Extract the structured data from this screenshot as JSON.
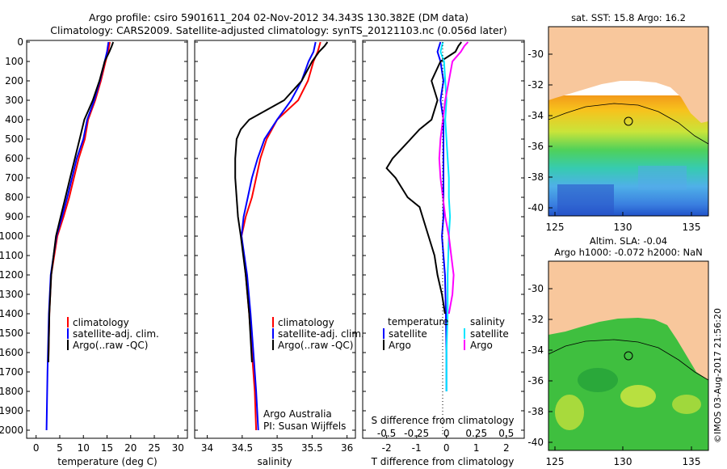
{
  "header": {
    "line1": "Argo profile: csiro 5901611_204 02-Nov-2012 34.343S 130.382E (DM data)",
    "line2": "Climatology: CARS2009. Satellite-adjusted climatology: synTS_20121103.nc (0.056d later)"
  },
  "colors": {
    "climatology": "#ff0000",
    "satellite": "#0000ff",
    "argo": "#000000",
    "sat_s": "#00e5ff",
    "argo_s": "#ff00ff",
    "land": "#f8c79c"
  },
  "depth_ticks": [
    "0",
    "100",
    "200",
    "300",
    "400",
    "500",
    "600",
    "700",
    "800",
    "900",
    "1000",
    "1100",
    "1200",
    "1300",
    "1400",
    "1500",
    "1600",
    "1700",
    "1800",
    "1900",
    "2000"
  ],
  "chart_data": [
    {
      "type": "line",
      "xlabel": "temperature (deg C)",
      "xticks": [
        "0",
        "5",
        "10",
        "15",
        "20",
        "25",
        "30"
      ],
      "xlim": [
        -2,
        32
      ],
      "ylim": [
        2080,
        0
      ],
      "legend": [
        "climatology",
        "satellite-adj. clim.",
        "Argo(..raw -QC)"
      ],
      "series": [
        {
          "name": "climatology",
          "depth": [
            0,
            50,
            100,
            200,
            300,
            400,
            500,
            600,
            700,
            800,
            900,
            1000,
            1200,
            1400,
            1650
          ],
          "values": [
            15.6,
            15.2,
            14.7,
            13.7,
            12.5,
            11.0,
            10.3,
            9.0,
            8.0,
            7.0,
            5.8,
            4.5,
            3.2,
            2.8,
            2.6
          ]
        },
        {
          "name": "satellite-adj. clim.",
          "depth": [
            0,
            50,
            100,
            200,
            300,
            400,
            500,
            600,
            700,
            800,
            900,
            1000,
            1200,
            1400,
            1700,
            2000
          ],
          "values": [
            15.3,
            15.0,
            14.5,
            13.5,
            12.3,
            10.8,
            10.0,
            8.6,
            7.6,
            6.6,
            5.5,
            4.3,
            3.1,
            2.7,
            2.4,
            2.2
          ]
        },
        {
          "name": "Argo(..raw -QC)",
          "depth": [
            0,
            20,
            50,
            100,
            200,
            300,
            400,
            500,
            600,
            700,
            800,
            900,
            1000,
            1200,
            1400,
            1650
          ],
          "values": [
            16.3,
            16.0,
            15.5,
            14.5,
            13.4,
            12.0,
            10.2,
            9.2,
            8.2,
            7.2,
            6.2,
            5.2,
            4.2,
            3.2,
            2.8,
            2.6
          ]
        }
      ]
    },
    {
      "type": "line",
      "xlabel": "salinity",
      "xticks": [
        "34",
        "34.5",
        "35",
        "35.5",
        "36"
      ],
      "xlim": [
        33.82,
        36.12
      ],
      "ylim": [
        2080,
        0
      ],
      "legend": [
        "climatology",
        "satellite-adj. clim.",
        "Argo(..raw -QC)"
      ],
      "annotation": [
        "Argo Australia",
        "PI: Susan Wijffels"
      ],
      "series": [
        {
          "name": "climatology",
          "depth": [
            0,
            50,
            100,
            200,
            300,
            400,
            500,
            600,
            700,
            800,
            900,
            1000,
            1200,
            1400,
            1600,
            1800,
            2000
          ],
          "values": [
            35.62,
            35.58,
            35.52,
            35.44,
            35.3,
            35.0,
            34.85,
            34.76,
            34.7,
            34.64,
            34.55,
            34.49,
            34.55,
            34.6,
            34.64,
            34.68,
            34.7
          ]
        },
        {
          "name": "satellite-adj. clim.",
          "depth": [
            0,
            50,
            100,
            200,
            300,
            400,
            500,
            600,
            700,
            800,
            900,
            1000,
            1200,
            1400,
            1600,
            1800,
            2000
          ],
          "values": [
            35.55,
            35.52,
            35.45,
            35.35,
            35.2,
            35.0,
            34.82,
            34.72,
            34.64,
            34.58,
            34.52,
            34.49,
            34.57,
            34.62,
            34.66,
            34.7,
            34.73
          ]
        },
        {
          "name": "Argo(..raw -QC)",
          "depth": [
            0,
            20,
            50,
            100,
            200,
            300,
            400,
            450,
            500,
            600,
            700,
            800,
            900,
            1000,
            1200,
            1400,
            1650
          ],
          "values": [
            35.72,
            35.68,
            35.6,
            35.5,
            35.35,
            35.1,
            34.6,
            34.48,
            34.42,
            34.4,
            34.4,
            34.42,
            34.44,
            34.48,
            34.55,
            34.6,
            34.64
          ]
        }
      ]
    },
    {
      "type": "line",
      "xlabel": "T difference from climatology",
      "xlabel_top": "S difference from climatology",
      "xticks": [
        "-2",
        "-1",
        "0",
        "1",
        "2"
      ],
      "xticks_top": [
        "-0.5",
        "-0.25",
        "0",
        "0.25",
        "0.5"
      ],
      "xlim": [
        -2.8,
        2.6
      ],
      "ylim": [
        2080,
        0
      ],
      "legend_left_title": "temperature",
      "legend_right_title": "salinity",
      "legend": [
        "satellite",
        "Argo",
        "satellite",
        "Argo"
      ],
      "series": [
        {
          "name": "satellite (temperature)",
          "depth": [
            0,
            50,
            100,
            200,
            300,
            400,
            500,
            600,
            700,
            800,
            900,
            1000,
            1100,
            1200,
            1400,
            1600,
            1800
          ],
          "values": [
            -0.2,
            -0.3,
            -0.2,
            -0.1,
            -0.2,
            -0.1,
            -0.1,
            -0.1,
            -0.1,
            -0.1,
            -0.1,
            -0.15,
            -0.1,
            -0.05,
            -0.02,
            0,
            0
          ]
        },
        {
          "name": "Argo (temperature)",
          "depth": [
            0,
            20,
            50,
            100,
            200,
            300,
            400,
            450,
            500,
            600,
            650,
            700,
            800,
            850,
            900,
            1000,
            1100,
            1200,
            1300,
            1400
          ],
          "values": [
            0.5,
            0.4,
            0.3,
            -0.2,
            -0.5,
            -0.3,
            -0.5,
            -0.9,
            -1.2,
            -1.8,
            -2.0,
            -1.7,
            -1.3,
            -0.9,
            -0.8,
            -0.6,
            -0.4,
            -0.3,
            -0.15,
            -0.05
          ]
        },
        {
          "name": "satellite (salinity)",
          "depth": [
            0,
            50,
            100,
            200,
            300,
            400,
            500,
            600,
            700,
            800,
            900,
            1000,
            1200,
            1400,
            1600,
            1800
          ],
          "values": [
            -0.03,
            -0.05,
            -0.02,
            -0.01,
            0,
            -0.01,
            0,
            0.01,
            0.02,
            0.02,
            0.03,
            0.02,
            0.01,
            0.01,
            0,
            0
          ]
        },
        {
          "name": "Argo (salinity)",
          "depth": [
            0,
            20,
            50,
            100,
            200,
            300,
            400,
            500,
            600,
            700,
            800,
            900,
            1000,
            1100,
            1200,
            1300,
            1400
          ],
          "values": [
            0.18,
            0.15,
            0.12,
            0.05,
            0.02,
            -0.01,
            -0.03,
            -0.05,
            -0.06,
            -0.05,
            -0.03,
            -0.01,
            0.02,
            0.04,
            0.06,
            0.05,
            0.02
          ]
        }
      ]
    }
  ],
  "map_top": {
    "title": "sat. SST: 15.8 Argo: 16.2",
    "yticks": [
      "-30",
      "-32",
      "-34",
      "-36",
      "-38",
      "-40"
    ],
    "xticks": [
      "125",
      "130",
      "135"
    ]
  },
  "map_bottom": {
    "title1": "Altim. SLA: -0.04",
    "title2": "Argo h1000: -0.072 h2000: NaN",
    "yticks": [
      "-30",
      "-32",
      "-34",
      "-36",
      "-38",
      "-40"
    ],
    "xticks": [
      "125",
      "130",
      "135"
    ]
  },
  "credit": "©IMOS 03-Aug-2017 21:56:20"
}
